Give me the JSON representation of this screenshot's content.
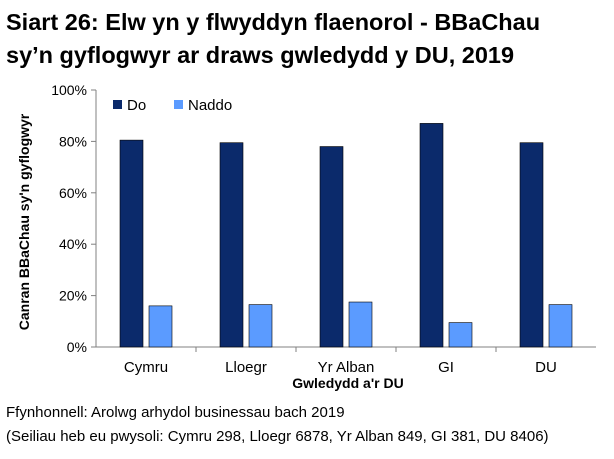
{
  "title_line1": "Siart 26: Elw yn y flwyddyn flaenorol - BBaChau",
  "title_line2": "sy’n gyflogwyr ar draws gwledydd y DU, 2019",
  "source_line1": "Ffynhonnell: Arolwg arhydol businessau bach 2019",
  "source_line2": "(Seiliau heb eu pwysoli: Cymru 298, Lloegr 6878, Yr Alban 849, GI 381, DU 8406)",
  "colors": {
    "Do": "#0b2a6b",
    "Naddo": "#5b9bff",
    "axis": "#808080"
  },
  "chart_data": {
    "type": "bar",
    "categories": [
      "Cymru",
      "Lloegr",
      "Yr Alban",
      "GI",
      "DU"
    ],
    "series": [
      {
        "name": "Do",
        "values": [
          80.5,
          79.5,
          78.0,
          87.0,
          79.5
        ]
      },
      {
        "name": "Naddo",
        "values": [
          16.0,
          16.5,
          17.5,
          9.5,
          16.5
        ]
      }
    ],
    "xlabel": "Gwledydd a'r DU",
    "ylabel": "Canran BBaChau sy'n gyflogwyr",
    "ylim": [
      0,
      100
    ],
    "yticks": [
      "0%",
      "20%",
      "40%",
      "60%",
      "80%",
      "100%"
    ],
    "grid": false,
    "legend_position": "top-left"
  }
}
